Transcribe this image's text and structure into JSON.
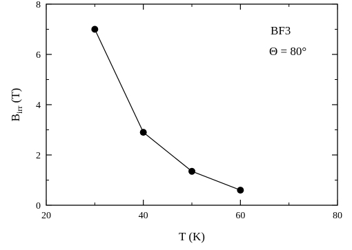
{
  "chart_data": {
    "type": "line",
    "title": "",
    "xlabel": "T (K)",
    "ylabel": {
      "main": "B",
      "sub": "irr",
      "unit": " (T)"
    },
    "xlim": [
      20,
      80
    ],
    "ylim": [
      0,
      8
    ],
    "xticks": [
      20,
      40,
      60,
      80
    ],
    "yticks": [
      0,
      2,
      4,
      6,
      8
    ],
    "xtick_labels": [
      "20",
      "40",
      "60",
      "80"
    ],
    "ytick_labels": [
      "0",
      "2",
      "4",
      "6",
      "8"
    ],
    "grid": false,
    "legend": "none",
    "annotations": [
      "BF3",
      "Θ = 80°"
    ],
    "series": [
      {
        "x": [
          30,
          40,
          50,
          60
        ],
        "y": [
          7.0,
          2.9,
          1.35,
          0.6
        ],
        "marker": "filled-circle",
        "color": "#000000"
      }
    ]
  }
}
